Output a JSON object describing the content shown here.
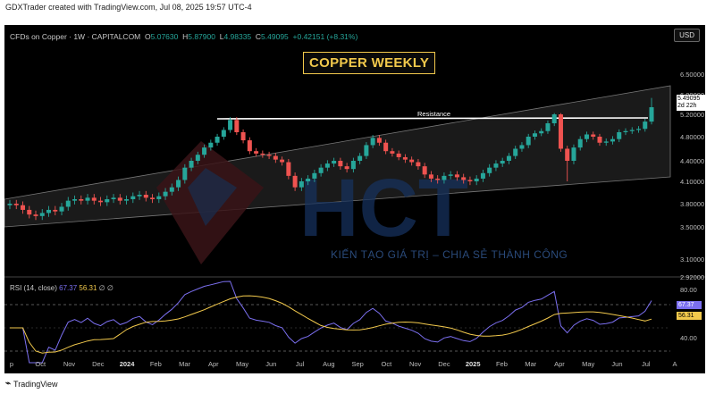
{
  "caption": "GDXTrader created with TradingView.com, Jul 08, 2025 19:57 UTC-4",
  "symbol": {
    "name": "CFDs on Copper · 1W · CAPITALCOM",
    "o_label": "O",
    "o": "5.07630",
    "h_label": "H",
    "h": "5.87900",
    "l_label": "L",
    "l": "4.98335",
    "c_label": "C",
    "c": "5.49095",
    "change": "+0.42151 (+8.31%)"
  },
  "currency_button": "USD",
  "title_box": "COPPER WEEKLY",
  "resistance_label": "Resistance",
  "price_ticks": [
    "6.50000",
    "6.00000",
    "5.20000",
    "4.80000",
    "4.40000",
    "4.10000",
    "3.80000",
    "3.50000",
    "3.10000",
    "2.92000"
  ],
  "price_tag": {
    "price": "5.49095",
    "countdown": "2d 22h"
  },
  "watermark": {
    "logo": "HCT",
    "slogan": "KIẾN TẠO GIÁ TRỊ – CHIA SẺ THÀNH CÔNG"
  },
  "rsi": {
    "label": "RSI (14, close)",
    "rsi_value": "67.37",
    "ma_value": "56.31",
    "symbols": "∅ ∅",
    "ticks": [
      "80.00",
      "40.00"
    ],
    "tag_rsi": "67.37",
    "tag_ma": "56.31"
  },
  "time_axis": [
    {
      "label": "p",
      "year": false
    },
    {
      "label": "Oct",
      "year": false
    },
    {
      "label": "Nov",
      "year": false
    },
    {
      "label": "Dec",
      "year": false
    },
    {
      "label": "2024",
      "year": true
    },
    {
      "label": "Feb",
      "year": false
    },
    {
      "label": "Mar",
      "year": false
    },
    {
      "label": "Apr",
      "year": false
    },
    {
      "label": "May",
      "year": false
    },
    {
      "label": "Jun",
      "year": false
    },
    {
      "label": "Jul",
      "year": false
    },
    {
      "label": "Aug",
      "year": false
    },
    {
      "label": "Sep",
      "year": false
    },
    {
      "label": "Oct",
      "year": false
    },
    {
      "label": "Nov",
      "year": false
    },
    {
      "label": "Dec",
      "year": false
    },
    {
      "label": "2025",
      "year": true
    },
    {
      "label": "Feb",
      "year": false
    },
    {
      "label": "Mar",
      "year": false
    },
    {
      "label": "Apr",
      "year": false
    },
    {
      "label": "May",
      "year": false
    },
    {
      "label": "Jun",
      "year": false
    },
    {
      "label": "Jul",
      "year": false
    },
    {
      "label": "A",
      "year": false
    }
  ],
  "footer": {
    "brand": "TradingView"
  },
  "colors": {
    "up": "#26a69a",
    "down": "#ef5350",
    "rsi": "#7b6ff0",
    "rsi_ma": "#f2c94c",
    "accent": "#f2c94c"
  },
  "chart_data": {
    "type": "candlestick",
    "title": "COPPER WEEKLY",
    "ylim": [
      2.92,
      6.5
    ],
    "weekly_close": [
      3.8,
      3.78,
      3.72,
      3.66,
      3.64,
      3.68,
      3.72,
      3.7,
      3.76,
      3.84,
      3.86,
      3.84,
      3.88,
      3.84,
      3.82,
      3.86,
      3.88,
      3.84,
      3.86,
      3.9,
      3.92,
      3.88,
      3.86,
      3.9,
      3.96,
      4.02,
      4.12,
      4.3,
      4.4,
      4.5,
      4.62,
      4.7,
      4.8,
      4.92,
      5.1,
      4.88,
      4.74,
      4.56,
      4.52,
      4.5,
      4.48,
      4.42,
      4.38,
      4.18,
      4.02,
      4.1,
      4.14,
      4.22,
      4.3,
      4.36,
      4.4,
      4.32,
      4.28,
      4.4,
      4.48,
      4.66,
      4.78,
      4.7,
      4.56,
      4.52,
      4.46,
      4.42,
      4.38,
      4.32,
      4.2,
      4.14,
      4.12,
      4.18,
      4.2,
      4.16,
      4.12,
      4.1,
      4.14,
      4.22,
      4.3,
      4.36,
      4.4,
      4.48,
      4.6,
      4.66,
      4.8,
      4.86,
      4.9,
      5.04,
      5.2,
      4.6,
      4.4,
      4.62,
      4.76,
      4.84,
      4.8,
      4.7,
      4.72,
      4.76,
      4.88,
      4.9,
      4.92,
      4.94,
      5.07,
      5.49
    ]
  }
}
